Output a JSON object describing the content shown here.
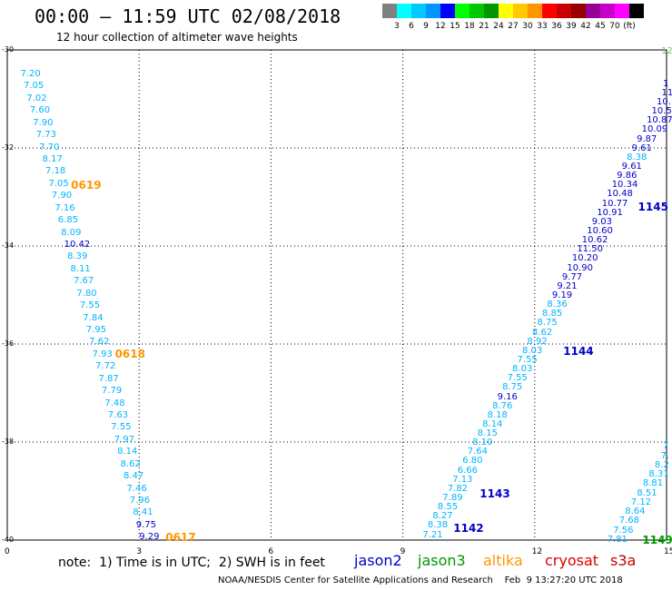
{
  "title": "00:00 – 11:59 UTC 02/08/2018",
  "subtitle": "12 hour collection of altimeter wave heights",
  "scale": {
    "colors": [
      "#808080",
      "#00ffff",
      "#00c8ff",
      "#0096ff",
      "#0000ff",
      "#00ff00",
      "#00c800",
      "#009600",
      "#ffff00",
      "#ffc800",
      "#ff9600",
      "#ff0000",
      "#c80000",
      "#960000",
      "#960096",
      "#c800c8",
      "#ff00ff",
      "#000000"
    ],
    "labels": [
      "3",
      "6",
      "9",
      "12",
      "15",
      "18",
      "21",
      "24",
      "27",
      "30",
      "33",
      "36",
      "39",
      "42",
      "45",
      "70",
      "(ft)"
    ]
  },
  "axes": {
    "x_ticks": [
      "0",
      "3",
      "6",
      "9",
      "12",
      "15"
    ],
    "y_ticks": [
      "-30",
      "-32",
      "-34",
      "-36",
      "-38",
      "-40"
    ]
  },
  "passes": [
    {
      "name": "0619",
      "color": "#ff9600",
      "lon": 1.45,
      "lat": -32.75
    },
    {
      "name": "0618",
      "color": "#ff9600",
      "lon": 2.45,
      "lat": -36.2
    },
    {
      "name": "0617",
      "color": "#ff9600",
      "lon": 3.6,
      "lat": -39.95
    },
    {
      "name": "1145",
      "color": "#0000c8",
      "lon": 14.35,
      "lat": -33.2
    },
    {
      "name": "1144",
      "color": "#0000c8",
      "lon": 12.65,
      "lat": -36.15
    },
    {
      "name": "1143",
      "color": "#0000c8",
      "lon": 10.75,
      "lat": -39.05
    },
    {
      "name": "1142",
      "color": "#0000c8",
      "lon": 10.15,
      "lat": -39.75
    },
    {
      "name": "1149",
      "color": "#009600",
      "lon": 14.45,
      "lat": -40.0
    }
  ],
  "tracks": [
    {
      "color": "#00b4ff",
      "lon0": 0.3,
      "lat0": -30.5,
      "lon1": 3.0,
      "lat1": -39.95,
      "values": [
        "7.20",
        "7.05",
        "7.02",
        "7.60",
        "7.90",
        "7.73",
        "7.70",
        "8.17",
        "7.18",
        "7.05",
        "7.90",
        "7.16",
        "6.85",
        "8.09",
        "10.42",
        "8.39",
        "8.11",
        "7.67",
        "7.80",
        "7.55",
        "7.84",
        "7.95",
        "7.62",
        "7.93",
        "7.72",
        "7.87",
        "7.79",
        "7.48",
        "7.63",
        "7.55",
        "7.97",
        "8.14",
        "8.62",
        "8.47",
        "7.46",
        "7.96",
        "8.41",
        "9.75",
        "9.29"
      ],
      "colors": {
        "14": "#0000c8",
        "37": "#0000c8",
        "38": "#0000c8"
      }
    },
    {
      "color": "#00b4ff",
      "lon0": 9.45,
      "lat0": -39.9,
      "lon1": 15.0,
      "lat1": -30.7,
      "values": [
        "7.21",
        "8.38",
        "8.27",
        "8.55",
        "7.89",
        "7.82",
        "7.13",
        "6.66",
        "6.80",
        "7.64",
        "8.10",
        "8.15",
        "8.14",
        "8.18",
        "8.76",
        "9.16",
        "8.75",
        "7.55",
        "8.03",
        "7.55",
        "8.03",
        "8.92",
        "8.62",
        "8.75",
        "8.85",
        "8.36",
        "9.19",
        "9.21",
        "9.77",
        "10.90",
        "10.20",
        "11.50",
        "10.62",
        "10.60",
        "9.03",
        "10.91",
        "10.77",
        "10.48",
        "10.34",
        "9.86",
        "9.61",
        "8.38",
        "9.61",
        "9.87",
        "10.09",
        "10.87",
        "10.5",
        "10.",
        "11",
        "1"
      ],
      "colors": {
        "15": "#0000c8",
        "26": "#0000c8",
        "27": "#0000c8",
        "28": "#0000c8",
        "29": "#0000c8",
        "30": "#0000c8",
        "31": "#0000c8",
        "32": "#0000c8",
        "33": "#0000c8",
        "34": "#0000c8",
        "35": "#0000c8",
        "36": "#0000c8",
        "37": "#0000c8",
        "38": "#0000c8",
        "39": "#0000c8",
        "40": "#0000c8",
        "42": "#0000c8",
        "43": "#0000c8",
        "44": "#0000c8",
        "45": "#0000c8",
        "46": "#0000c8",
        "47": "#0000c8",
        "48": "#0000c8",
        "49": "#0000c8"
      }
    },
    {
      "color": "#00b4ff",
      "lon0": 13.65,
      "lat0": -40.0,
      "lon1": 15.0,
      "lat1": -38.1,
      "values": [
        "7.81",
        "7.56",
        "7.68",
        "8.64",
        "7.12",
        "8.51",
        "8.81",
        "8.31",
        "8.2",
        "7.",
        "7"
      ],
      "colors": {}
    }
  ],
  "corner_label": {
    "text": "12",
    "color": "#66cc66"
  },
  "note": "note:  1) Time is in UTC;  2) SWH is in feet",
  "satellites": [
    {
      "name": "jason2",
      "color": "#0000c8"
    },
    {
      "name": "jason3",
      "color": "#009600"
    },
    {
      "name": "altika",
      "color": "#ff9600"
    },
    {
      "name": "cryosat",
      "color": "#e00000"
    },
    {
      "name": "s3a",
      "color": "#c80000"
    }
  ],
  "credit": "NOAA/NESDIS Center for Satellite Applications and Research    Feb  9 13:27:20 UTC 2018"
}
